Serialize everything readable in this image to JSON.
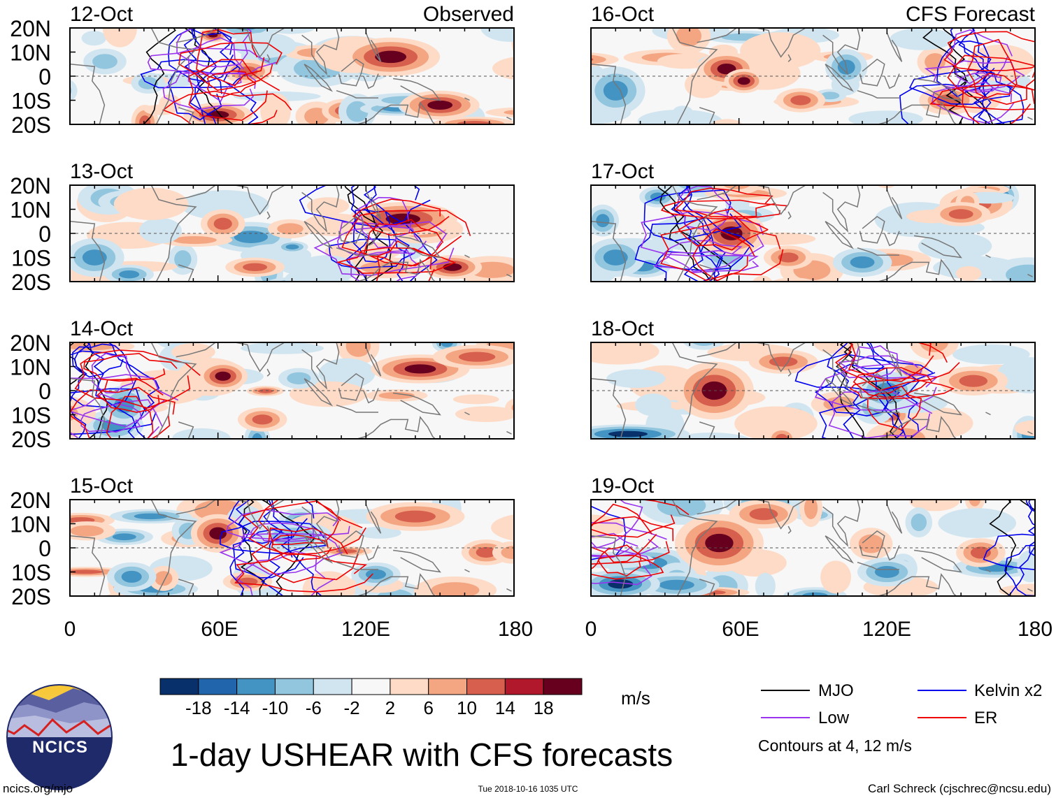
{
  "chart_data": {
    "type": "heatmap",
    "title": "1-day USHEAR with CFS forecasts",
    "variable": "USHEAR",
    "units": "m/s",
    "x_ticks": [
      "0",
      "60E",
      "120E",
      "180"
    ],
    "y_ticks": [
      "20N",
      "10N",
      "0",
      "10S",
      "20S"
    ],
    "xlim": [
      0,
      180
    ],
    "ylim": [
      -20,
      20
    ],
    "columns": [
      {
        "label": "Observed",
        "panels": [
          "12-Oct",
          "13-Oct",
          "14-Oct",
          "15-Oct"
        ]
      },
      {
        "label": "CFS Forecast",
        "panels": [
          "16-Oct",
          "17-Oct",
          "18-Oct",
          "19-Oct"
        ]
      }
    ],
    "colorbar": {
      "labels": [
        "-18",
        "-14",
        "-10",
        "-6",
        "-2",
        "2",
        "6",
        "10",
        "14",
        "18"
      ],
      "colors": [
        "#08306b",
        "#2166ac",
        "#4393c3",
        "#92c5de",
        "#d1e5f0",
        "#f7f7f7",
        "#fddbc7",
        "#f4a582",
        "#d6604d",
        "#b2182b",
        "#67001f"
      ]
    },
    "legend": [
      {
        "label": "MJO",
        "color": "#000000"
      },
      {
        "label": "Kelvin x2",
        "color": "#0000ee"
      },
      {
        "label": "Low",
        "color": "#9933ee"
      },
      {
        "label": "ER",
        "color": "#ee0000"
      }
    ],
    "contour_note": "Contours at 4, 12 m/s"
  },
  "footer": {
    "logo_text": "NCICS",
    "site": "ncics.org/mjo",
    "timestamp": "Tue 2018-10-16 1035 UTC",
    "credit": "Carl Schreck (cjschrec@ncsu.edu)"
  }
}
